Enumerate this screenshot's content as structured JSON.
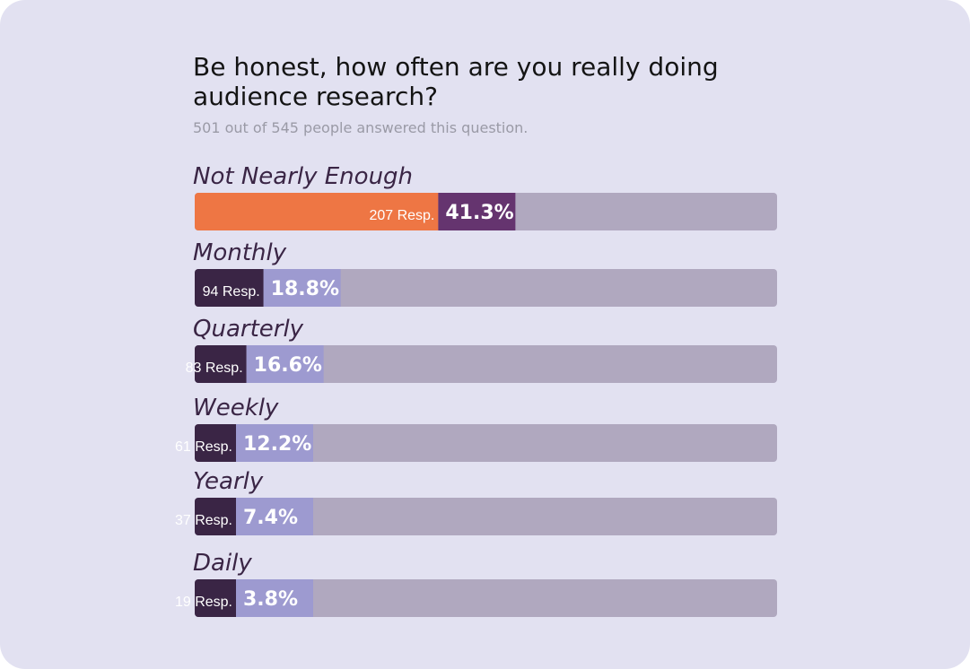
{
  "chart_data": {
    "type": "bar",
    "title": "Be honest, how often are you really doing audience research?",
    "subtitle": "501 out of 545 people answered this question.",
    "resp_suffix": "Resp.",
    "categories": [
      "Not Nearly Enough",
      "Monthly",
      "Quarterly",
      "Weekly",
      "Yearly",
      "Daily"
    ],
    "responses": [
      207,
      94,
      83,
      61,
      37,
      19
    ],
    "percent_labels": [
      "41.3%",
      "18.8%",
      "16.6%",
      "12.2%",
      "7.4%",
      "3.8%"
    ],
    "values": [
      41.3,
      18.8,
      16.6,
      12.2,
      7.4,
      3.8
    ],
    "xlim": [
      0,
      100
    ],
    "colors": {
      "card_background": "#e2e1f1",
      "track": "#b0a8bf",
      "highlight_fill": "#ee7644",
      "highlight_pct_fill": "#65346f",
      "count_fill": "#3a2545",
      "pct_fill": "#9d9ad0"
    }
  }
}
